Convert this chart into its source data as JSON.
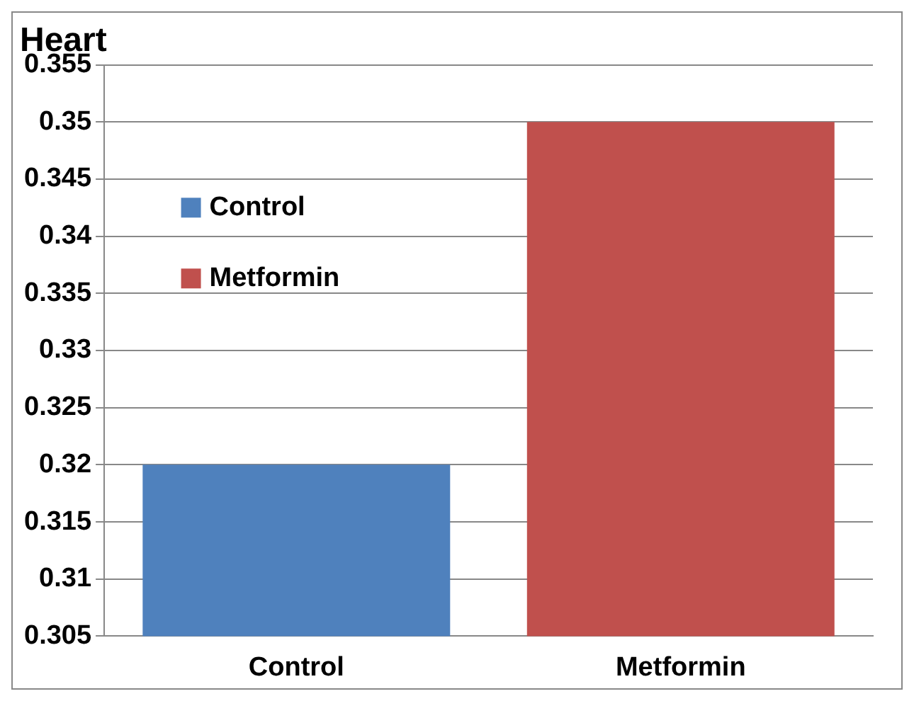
{
  "chart_data": {
    "type": "bar",
    "title": "Heart",
    "categories": [
      "Control",
      "Metformin"
    ],
    "series": [
      {
        "name": "Control",
        "color": "#4f81bd",
        "values": [
          0.32,
          null
        ]
      },
      {
        "name": "Metformin",
        "color": "#c0504d",
        "values": [
          null,
          0.35
        ]
      }
    ],
    "ylim": [
      0.305,
      0.355
    ],
    "yticks": [
      0.305,
      0.31,
      0.315,
      0.32,
      0.325,
      0.33,
      0.335,
      0.34,
      0.345,
      0.35,
      0.355
    ],
    "grid": "y",
    "legend": "left"
  }
}
